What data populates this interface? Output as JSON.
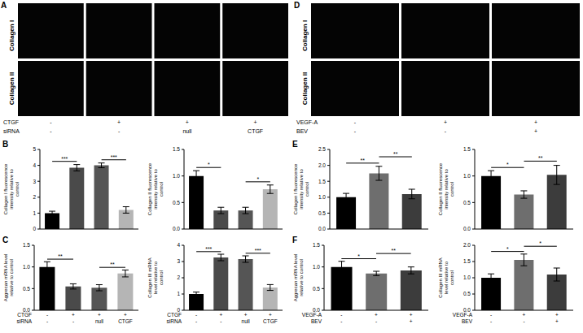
{
  "image_panels": [
    {
      "panel_label": "A",
      "rows": [
        "Collagen I",
        "Collagen II"
      ],
      "conditions": [
        {
          "name": "CTGF",
          "values": [
            "-",
            "+",
            "+",
            "+"
          ]
        },
        {
          "name": "siRNA",
          "values": [
            "-",
            "-",
            "null",
            "CTGF"
          ]
        }
      ]
    },
    {
      "panel_label": "D",
      "rows": [
        "Collagen I",
        "Collagen II"
      ],
      "conditions": [
        {
          "name": "VEGF-A",
          "values": [
            "-",
            "+",
            "+"
          ]
        },
        {
          "name": "BEV",
          "values": [
            "-",
            "-",
            "+"
          ]
        }
      ]
    }
  ],
  "chart_data": [
    {
      "type": "bar",
      "panel_label": "B",
      "ylabel": "Collagen I fluorescence intensity relative to control",
      "categories": [
        null,
        null,
        null,
        null
      ],
      "values": [
        1.0,
        3.85,
        4.0,
        1.2
      ],
      "errors": [
        0.12,
        0.2,
        0.15,
        0.2
      ],
      "colors": [
        "#000000",
        "#4a4a4a",
        "#555555",
        "#b5b5b5"
      ],
      "ylim": [
        0,
        5
      ],
      "yticks": [
        0,
        1,
        2,
        3,
        4,
        5
      ],
      "tick_labels": "y",
      "significance": [
        {
          "from": 0,
          "to": 1,
          "label": "***"
        },
        {
          "from": 2,
          "to": 3,
          "label": "***"
        }
      ]
    },
    {
      "type": "bar",
      "ylabel": "Collagen II fluorescence intensity relative to control",
      "categories": [
        null,
        null,
        null,
        null
      ],
      "values": [
        1.0,
        0.35,
        0.35,
        0.75
      ],
      "errors": [
        0.1,
        0.06,
        0.06,
        0.08
      ],
      "colors": [
        "#000000",
        "#4a4a4a",
        "#555555",
        "#b5b5b5"
      ],
      "ylim": [
        0,
        1.5
      ],
      "yticks": [
        {
          "value": 0,
          "label": "0.0"
        },
        {
          "value": 0.5,
          "label": "0.5"
        },
        {
          "value": 1,
          "label": "1.0"
        },
        {
          "value": 1.5,
          "label": "1.5"
        }
      ],
      "tick_labels": "y",
      "significance": [
        {
          "from": 0,
          "to": 1,
          "label": "*"
        },
        {
          "from": 2,
          "to": 3,
          "label": "*"
        }
      ]
    },
    {
      "type": "bar",
      "panel_label": "E",
      "ylabel": "Collagen I fluorescence intensity relative to control",
      "categories": [
        null,
        null,
        null
      ],
      "values": [
        1.0,
        1.75,
        1.1
      ],
      "errors": [
        0.12,
        0.22,
        0.15
      ],
      "colors": [
        "#000000",
        "#6e6e6e",
        "#3c3c3c"
      ],
      "ylim": [
        0,
        2.5
      ],
      "yticks": [
        {
          "value": 0,
          "label": "0.0"
        },
        {
          "value": 0.5,
          "label": "0.5"
        },
        {
          "value": 1,
          "label": "1.0"
        },
        {
          "value": 1.5,
          "label": "1.5"
        },
        {
          "value": 2,
          "label": "2.0"
        },
        {
          "value": 2.5,
          "label": "2.5"
        }
      ],
      "tick_labels": "y",
      "significance": [
        {
          "from": 0,
          "to": 1,
          "label": "**"
        },
        {
          "from": 1,
          "to": 2,
          "label": "**"
        }
      ]
    },
    {
      "type": "bar",
      "ylabel": "Collagen II fluorescence intensity relative to control",
      "categories": [
        null,
        null,
        null
      ],
      "values": [
        1.0,
        0.65,
        1.02
      ],
      "errors": [
        0.1,
        0.07,
        0.18
      ],
      "colors": [
        "#000000",
        "#6e6e6e",
        "#3c3c3c"
      ],
      "ylim": [
        0,
        1.5
      ],
      "yticks": [
        {
          "value": 0,
          "label": "0.0"
        },
        {
          "value": 0.5,
          "label": "0.5"
        },
        {
          "value": 1,
          "label": "1.0"
        },
        {
          "value": 1.5,
          "label": "1.5"
        }
      ],
      "tick_labels": "y",
      "significance": [
        {
          "from": 0,
          "to": 1,
          "label": "*"
        },
        {
          "from": 1,
          "to": 2,
          "label": "**"
        }
      ]
    },
    {
      "type": "bar",
      "panel_label": "C",
      "ylabel": "Aggrecan mRNA level relative to control",
      "categories": [
        null,
        null,
        null,
        null
      ],
      "values": [
        1.0,
        0.55,
        0.52,
        0.85
      ],
      "errors": [
        0.12,
        0.06,
        0.07,
        0.08
      ],
      "colors": [
        "#000000",
        "#4a4a4a",
        "#555555",
        "#b5b5b5"
      ],
      "ylim": [
        0,
        1.5
      ],
      "yticks": [
        {
          "value": 0,
          "label": "0.0"
        },
        {
          "value": 0.5,
          "label": "0.5"
        },
        {
          "value": 1,
          "label": "1.0"
        },
        {
          "value": 1.5,
          "label": "1.5"
        }
      ],
      "conditions": [
        {
          "name": "CTGF",
          "values": [
            "-",
            "+",
            "+",
            "+"
          ]
        },
        {
          "name": "siRNA",
          "values": [
            "-",
            "-",
            "null",
            "CTGF"
          ]
        }
      ],
      "significance": [
        {
          "from": 0,
          "to": 1,
          "label": "**"
        },
        {
          "from": 2,
          "to": 3,
          "label": "**"
        }
      ]
    },
    {
      "type": "bar",
      "ylabel": "Collagen III mRNA level relative to control",
      "categories": [
        null,
        null,
        null,
        null
      ],
      "values": [
        1.0,
        3.25,
        3.15,
        1.4
      ],
      "errors": [
        0.12,
        0.2,
        0.2,
        0.18
      ],
      "colors": [
        "#000000",
        "#4a4a4a",
        "#555555",
        "#b5b5b5"
      ],
      "ylim": [
        0,
        4
      ],
      "yticks": [
        0,
        1,
        2,
        3,
        4
      ],
      "conditions": [
        {
          "name": "CTGF",
          "values": [
            "-",
            "+",
            "+",
            "+"
          ]
        },
        {
          "name": "siRNA",
          "values": [
            "-",
            "-",
            "null",
            "CTGF"
          ]
        }
      ],
      "significance": [
        {
          "from": 0,
          "to": 1,
          "label": "***"
        },
        {
          "from": 2,
          "to": 3,
          "label": "***"
        }
      ]
    },
    {
      "type": "bar",
      "panel_label": "F",
      "ylabel": "Aggrecan mRNA level relative to control",
      "categories": [
        null,
        null,
        null
      ],
      "values": [
        1.0,
        0.85,
        0.92
      ],
      "errors": [
        0.13,
        0.05,
        0.08
      ],
      "colors": [
        "#000000",
        "#6e6e6e",
        "#3c3c3c"
      ],
      "ylim": [
        0,
        1.5
      ],
      "yticks": [
        {
          "value": 0,
          "label": "0.0"
        },
        {
          "value": 0.5,
          "label": "0.5"
        },
        {
          "value": 1,
          "label": "1.0"
        },
        {
          "value": 1.5,
          "label": "1.5"
        }
      ],
      "conditions": [
        {
          "name": "VEGF-A",
          "values": [
            "-",
            "+",
            "+"
          ]
        },
        {
          "name": "BEV",
          "values": [
            "-",
            "-",
            "+"
          ]
        }
      ],
      "significance": [
        {
          "from": 0,
          "to": 1,
          "label": "*"
        },
        {
          "from": 1,
          "to": 2,
          "label": "**"
        }
      ]
    },
    {
      "type": "bar",
      "ylabel": "Collagen III mRNA level relative to control",
      "categories": [
        null,
        null,
        null
      ],
      "values": [
        1.0,
        1.55,
        1.1
      ],
      "errors": [
        0.12,
        0.18,
        0.2
      ],
      "colors": [
        "#000000",
        "#6e6e6e",
        "#3c3c3c"
      ],
      "ylim": [
        0,
        2.0
      ],
      "yticks": [
        {
          "value": 0,
          "label": "0.0"
        },
        {
          "value": 0.5,
          "label": "0.5"
        },
        {
          "value": 1,
          "label": "1.0"
        },
        {
          "value": 1.5,
          "label": "1.5"
        },
        {
          "value": 2,
          "label": "2.0"
        }
      ],
      "conditions": [
        {
          "name": "VEGF-A",
          "values": [
            "-",
            "+",
            "+"
          ]
        },
        {
          "name": "BEV",
          "values": [
            "-",
            "-",
            "+"
          ]
        }
      ],
      "significance": [
        {
          "from": 0,
          "to": 1,
          "label": "*"
        },
        {
          "from": 1,
          "to": 2,
          "label": "*"
        }
      ]
    }
  ]
}
